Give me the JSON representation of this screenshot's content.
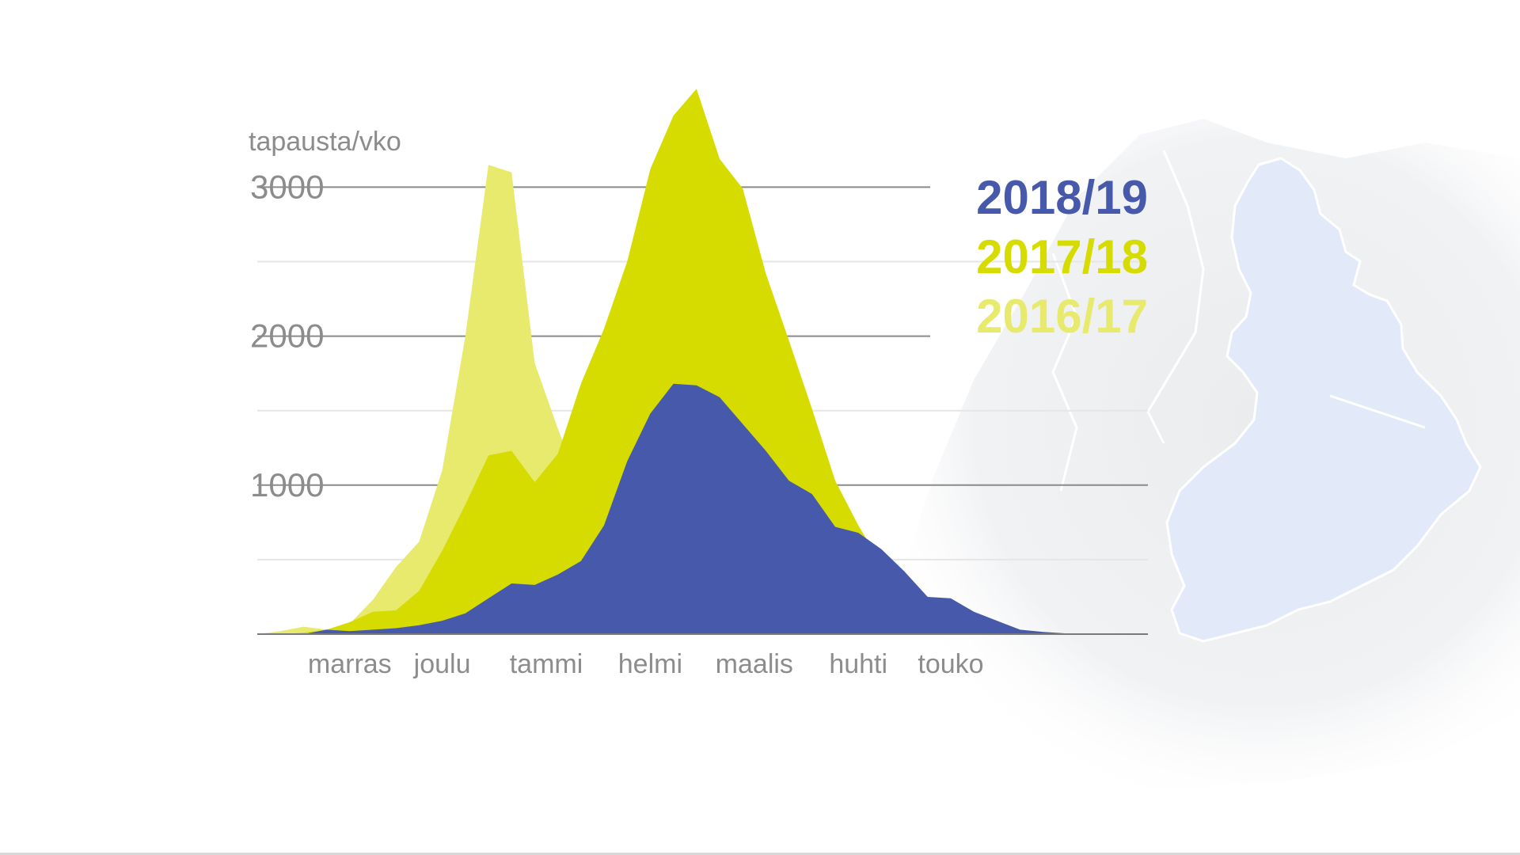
{
  "chart_data": {
    "type": "area",
    "title": "",
    "ylabel": "tapausta/vko",
    "xlabel": "",
    "ylim": [
      0,
      3600
    ],
    "yticks": [
      {
        "value": 1000,
        "label": "1000"
      },
      {
        "value": 2000,
        "label": "2000"
      },
      {
        "value": 3000,
        "label": "3000"
      }
    ],
    "minor_gridlines": [
      500,
      1500,
      2500
    ],
    "month_labels": [
      {
        "label": "marras",
        "week": 4
      },
      {
        "label": "joulu",
        "week": 8
      },
      {
        "label": "tammi",
        "week": 12.5
      },
      {
        "label": "helmi",
        "week": 17
      },
      {
        "label": "maalis",
        "week": 21.5
      },
      {
        "label": "huhti",
        "week": 26
      },
      {
        "label": "touko",
        "week": 30
      }
    ],
    "x_weeks": [
      0,
      1,
      2,
      3,
      4,
      5,
      6,
      7,
      8,
      9,
      10,
      11,
      12,
      13,
      14,
      15,
      16,
      17,
      18,
      19,
      20,
      21,
      22,
      23,
      24,
      25,
      26,
      27,
      28,
      29,
      30,
      31,
      32,
      33,
      34,
      35,
      36
    ],
    "legend_position": "right",
    "series": [
      {
        "name": "2016/17",
        "color": "#e8ea6e",
        "values": [
          0,
          20,
          50,
          30,
          70,
          230,
          450,
          620,
          1100,
          2000,
          3150,
          3100,
          1820,
          1380,
          980,
          620,
          330,
          170,
          80,
          40,
          20,
          10,
          5,
          0,
          0,
          0,
          0,
          0,
          0,
          0,
          0,
          0,
          0,
          0,
          0,
          0,
          0
        ]
      },
      {
        "name": "2017/18",
        "color": "#d6dc00",
        "values": [
          0,
          0,
          10,
          30,
          80,
          150,
          160,
          290,
          560,
          870,
          1200,
          1230,
          1020,
          1210,
          1680,
          2050,
          2500,
          3120,
          3480,
          3660,
          3190,
          2990,
          2420,
          1970,
          1510,
          1030,
          730,
          470,
          290,
          170,
          90,
          40,
          20,
          10,
          5,
          0,
          0
        ]
      },
      {
        "name": "2018/19",
        "color": "#4759aa",
        "values": [
          0,
          0,
          0,
          30,
          20,
          30,
          40,
          60,
          90,
          140,
          240,
          340,
          330,
          400,
          490,
          730,
          1160,
          1480,
          1680,
          1670,
          1590,
          1410,
          1230,
          1030,
          940,
          720,
          680,
          570,
          420,
          250,
          240,
          150,
          90,
          30,
          15,
          5,
          0
        ]
      }
    ]
  }
}
